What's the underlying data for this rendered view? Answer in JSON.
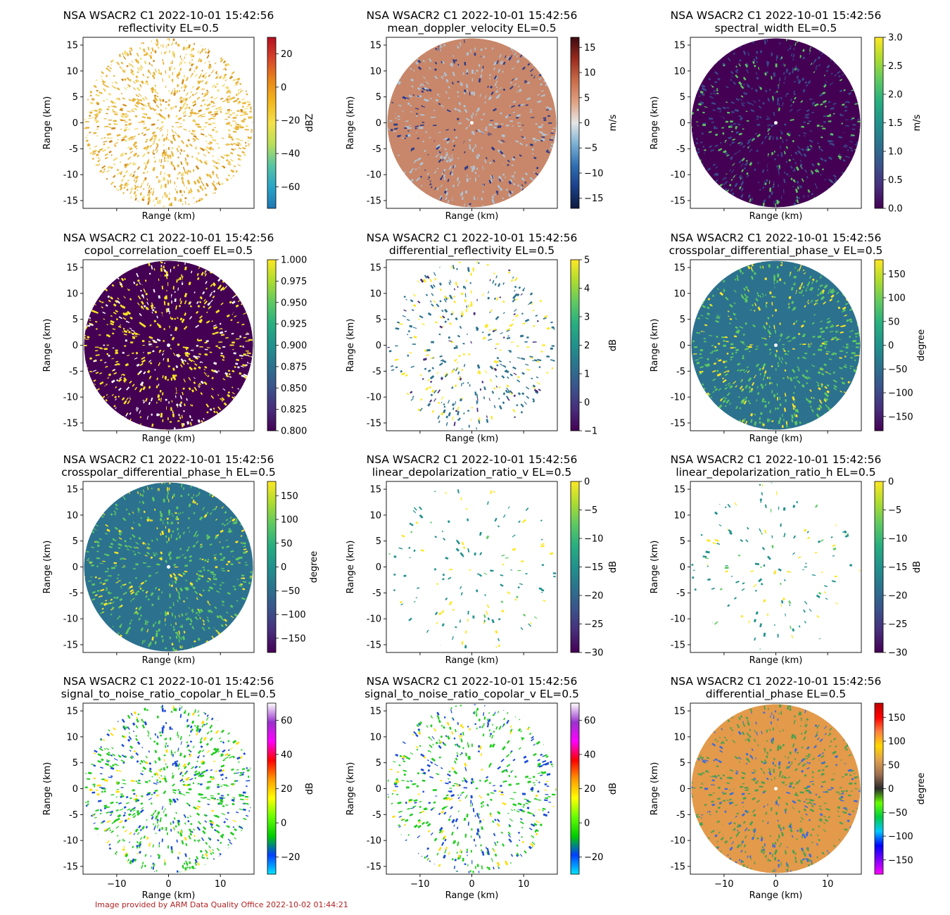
{
  "figure": {
    "footer": "Image provided by ARM Data Quality Office 2022-10-02 01:44:21",
    "footer_color": "#b22222"
  },
  "chart_data": [
    {
      "type": "heatmap",
      "title": "NSA WSACR2 C1 2022-10-01 15:42:56",
      "subtitle": "reflectivity  EL=0.5",
      "xlabel": "Range (km)",
      "ylabel": "Range (km)",
      "xlim": [
        -16.5,
        16.5
      ],
      "ylim": [
        -16.5,
        16.5
      ],
      "xticks": [
        -10,
        0,
        10
      ],
      "yticks": [
        15,
        10,
        5,
        0,
        -5,
        -10,
        -15
      ],
      "show_xticklabels": false,
      "show_ylabels": true,
      "colorbar": {
        "label": "dBZ",
        "min": -73,
        "max": 30,
        "ticks": [
          20,
          0,
          -20,
          -40,
          -60
        ],
        "colormap": [
          "#1f77b4",
          "#2aa5c7",
          "#57c4a4",
          "#b9df5a",
          "#f5e04a",
          "#f3b61c",
          "#e8861a",
          "#d6452b",
          "#b40f20"
        ]
      },
      "field": {
        "fill": "#e8b43c",
        "fill2": "#f4dc7a",
        "pattern": "sparse",
        "accent": "#d08a1e",
        "density": 0.8
      }
    },
    {
      "type": "heatmap",
      "title": "NSA WSACR2 C1 2022-10-01 15:42:56",
      "subtitle": "mean_doppler_velocity  EL=0.5",
      "xlabel": "Range (km)",
      "ylabel": "Range (km)",
      "xlim": [
        -16.5,
        16.5
      ],
      "ylim": [
        -16.5,
        16.5
      ],
      "xticks": [
        -10,
        0,
        10
      ],
      "yticks": [
        15,
        10,
        5,
        0,
        -5,
        -10,
        -15
      ],
      "show_xticklabels": false,
      "show_ylabels": true,
      "colorbar": {
        "label": "m/s",
        "min": -17,
        "max": 17,
        "ticks": [
          15,
          10,
          5,
          0,
          -5,
          -10,
          -15
        ],
        "colormap": [
          "#0e1a3c",
          "#1b3f8a",
          "#2f6fb1",
          "#7ab0d4",
          "#e6e6e6",
          "#e0a080",
          "#c86a48",
          "#9a2a1e",
          "#3c0a10"
        ]
      },
      "field": {
        "fill": "#c8876a",
        "fill2": "#b0c4d4",
        "pattern": "noisy",
        "accent": "#2a3a8a",
        "density": 0.95
      }
    },
    {
      "type": "heatmap",
      "title": "NSA WSACR2 C1 2022-10-01 15:42:56",
      "subtitle": "spectral_width  EL=0.5",
      "xlabel": "Range (km)",
      "ylabel": "Range (km)",
      "xlim": [
        -16.5,
        16.5
      ],
      "ylim": [
        -16.5,
        16.5
      ],
      "xticks": [
        -10,
        0,
        10
      ],
      "yticks": [
        15,
        10,
        5,
        0,
        -5,
        -10,
        -15
      ],
      "show_xticklabels": false,
      "show_ylabels": true,
      "colorbar": {
        "label": "m/s",
        "min": 0,
        "max": 3,
        "ticks": [
          3.0,
          2.5,
          2.0,
          1.5,
          1.0,
          0.5,
          0.0
        ],
        "colormap": [
          "#440154",
          "#472d7b",
          "#3b528b",
          "#2c728e",
          "#21918c",
          "#28ae80",
          "#5ec962",
          "#addc30",
          "#fde725"
        ]
      },
      "field": {
        "fill": "#440154",
        "fill2": "#3b4a8a",
        "pattern": "solid",
        "accent": "#5ec962",
        "density": 1.0
      }
    },
    {
      "type": "heatmap",
      "title": "NSA WSACR2 C1 2022-10-01 15:42:56",
      "subtitle": "copol_correlation_coeff  EL=0.5",
      "xlabel": "Range (km)",
      "ylabel": "Range (km)",
      "xlim": [
        -16.5,
        16.5
      ],
      "ylim": [
        -16.5,
        16.5
      ],
      "xticks": [
        -10,
        0,
        10
      ],
      "yticks": [
        15,
        10,
        5,
        0,
        -5,
        -10,
        -15
      ],
      "show_xticklabels": false,
      "show_ylabels": true,
      "colorbar": {
        "label": "",
        "min": 0.8,
        "max": 1.0,
        "ticks": [
          1.0,
          0.975,
          0.95,
          0.925,
          0.9,
          0.875,
          0.85,
          0.825,
          0.8
        ],
        "colormap": [
          "#440154",
          "#472d7b",
          "#3b528b",
          "#2c728e",
          "#21918c",
          "#28ae80",
          "#5ec962",
          "#addc30",
          "#fde725"
        ]
      },
      "field": {
        "fill": "#440154",
        "fill2": "#fde725",
        "pattern": "solid",
        "accent": "#ffffff",
        "density": 1.0
      }
    },
    {
      "type": "heatmap",
      "title": "NSA WSACR2 C1 2022-10-01 15:42:56",
      "subtitle": "differential_reflectivity  EL=0.5",
      "xlabel": "Range (km)",
      "ylabel": "Range (km)",
      "xlim": [
        -16.5,
        16.5
      ],
      "ylim": [
        -16.5,
        16.5
      ],
      "xticks": [
        -10,
        0,
        10
      ],
      "yticks": [
        15,
        10,
        5,
        0,
        -5,
        -10,
        -15
      ],
      "show_xticklabels": false,
      "show_ylabels": true,
      "colorbar": {
        "label": "dB",
        "min": -1,
        "max": 5,
        "ticks": [
          5,
          4,
          3,
          2,
          1,
          0,
          -1
        ],
        "colormap": [
          "#440154",
          "#472d7b",
          "#3b528b",
          "#2c728e",
          "#21918c",
          "#28ae80",
          "#5ec962",
          "#addc30",
          "#fde725"
        ]
      },
      "field": {
        "fill": "#2c728e",
        "fill2": "#fde725",
        "pattern": "sparse",
        "accent": "#472d7b",
        "density": 0.3
      }
    },
    {
      "type": "heatmap",
      "title": "NSA WSACR2 C1 2022-10-01 15:42:56",
      "subtitle": "crosspolar_differential_phase_v  EL=0.5",
      "xlabel": "Range (km)",
      "ylabel": "Range (km)",
      "xlim": [
        -16.5,
        16.5
      ],
      "ylim": [
        -16.5,
        16.5
      ],
      "xticks": [
        -10,
        0,
        10
      ],
      "yticks": [
        15,
        10,
        5,
        0,
        -5,
        -10,
        -15
      ],
      "show_xticklabels": false,
      "show_ylabels": true,
      "colorbar": {
        "label": "degree",
        "min": -180,
        "max": 180,
        "ticks": [
          150,
          100,
          50,
          0,
          -50,
          -100,
          -150
        ],
        "colormap": [
          "#440154",
          "#472d7b",
          "#3b528b",
          "#2c728e",
          "#21918c",
          "#28ae80",
          "#5ec962",
          "#addc30",
          "#fde725"
        ]
      },
      "field": {
        "fill": "#2c728e",
        "fill2": "#5ec962",
        "pattern": "noisy",
        "accent": "#fde725",
        "density": 1.0
      }
    },
    {
      "type": "heatmap",
      "title": "NSA WSACR2 C1 2022-10-01 15:42:56",
      "subtitle": "crosspolar_differential_phase_h  EL=0.5",
      "xlabel": "Range (km)",
      "ylabel": "Range (km)",
      "xlim": [
        -16.5,
        16.5
      ],
      "ylim": [
        -16.5,
        16.5
      ],
      "xticks": [
        -10,
        0,
        10
      ],
      "yticks": [
        15,
        10,
        5,
        0,
        -5,
        -10,
        -15
      ],
      "show_xticklabels": false,
      "show_ylabels": true,
      "colorbar": {
        "label": "degree",
        "min": -180,
        "max": 180,
        "ticks": [
          150,
          100,
          50,
          0,
          -50,
          -100,
          -150
        ],
        "colormap": [
          "#440154",
          "#472d7b",
          "#3b528b",
          "#2c728e",
          "#21918c",
          "#28ae80",
          "#5ec962",
          "#addc30",
          "#fde725"
        ]
      },
      "field": {
        "fill": "#2c728e",
        "fill2": "#5ec962",
        "pattern": "noisy",
        "accent": "#fde725",
        "density": 1.0
      }
    },
    {
      "type": "heatmap",
      "title": "NSA WSACR2 C1 2022-10-01 15:42:56",
      "subtitle": "linear_depolarization_ratio_v  EL=0.5",
      "xlabel": "Range (km)",
      "ylabel": "Range (km)",
      "xlim": [
        -16.5,
        16.5
      ],
      "ylim": [
        -16.5,
        16.5
      ],
      "xticks": [
        -10,
        0,
        10
      ],
      "yticks": [
        15,
        10,
        5,
        0,
        -5,
        -10,
        -15
      ],
      "show_xticklabels": false,
      "show_ylabels": true,
      "colorbar": {
        "label": "dB",
        "min": -30,
        "max": 0,
        "ticks": [
          0,
          -5,
          -10,
          -15,
          -20,
          -25,
          -30
        ],
        "colormap": [
          "#440154",
          "#472d7b",
          "#3b528b",
          "#2c728e",
          "#21918c",
          "#28ae80",
          "#5ec962",
          "#addc30",
          "#fde725"
        ]
      },
      "field": {
        "fill": "#21918c",
        "fill2": "#fde725",
        "pattern": "sparse",
        "accent": "#5ec962",
        "density": 0.1
      }
    },
    {
      "type": "heatmap",
      "title": "NSA WSACR2 C1 2022-10-01 15:42:56",
      "subtitle": "linear_depolarization_ratio_h  EL=0.5",
      "xlabel": "Range (km)",
      "ylabel": "Range (km)",
      "xlim": [
        -16.5,
        16.5
      ],
      "ylim": [
        -16.5,
        16.5
      ],
      "xticks": [
        -10,
        0,
        10
      ],
      "yticks": [
        15,
        10,
        5,
        0,
        -5,
        -10,
        -15
      ],
      "show_xticklabels": false,
      "show_ylabels": true,
      "colorbar": {
        "label": "dB",
        "min": -30,
        "max": 0,
        "ticks": [
          0,
          -5,
          -10,
          -15,
          -20,
          -25,
          -30
        ],
        "colormap": [
          "#440154",
          "#472d7b",
          "#3b528b",
          "#2c728e",
          "#21918c",
          "#28ae80",
          "#5ec962",
          "#addc30",
          "#fde725"
        ]
      },
      "field": {
        "fill": "#21918c",
        "fill2": "#fde725",
        "pattern": "sparse",
        "accent": "#5ec962",
        "density": 0.1
      }
    },
    {
      "type": "heatmap",
      "title": "NSA WSACR2 C1 2022-10-01 15:42:56",
      "subtitle": "signal_to_noise_ratio_copolar_h  EL=0.5",
      "xlabel": "Range (km)",
      "ylabel": "Range (km)",
      "xlim": [
        -16.5,
        16.5
      ],
      "ylim": [
        -16.5,
        16.5
      ],
      "xticks": [
        -10,
        0,
        10
      ],
      "yticks": [
        15,
        10,
        5,
        0,
        -5,
        -10,
        -15
      ],
      "show_xticklabels": true,
      "show_ylabels": true,
      "colorbar": {
        "label": "dB",
        "min": -30,
        "max": 70,
        "ticks": [
          60,
          40,
          20,
          0,
          -20
        ],
        "colormap": [
          "#00e5ff",
          "#0040ff",
          "#00cc00",
          "#66ff00",
          "#ffff00",
          "#ff9900",
          "#ff0000",
          "#ff00ff",
          "#9933cc",
          "#ffffff"
        ]
      },
      "field": {
        "fill": "#22cc22",
        "fill2": "#1a4bd6",
        "pattern": "sparse",
        "accent": "#ffdd00",
        "density": 0.55
      }
    },
    {
      "type": "heatmap",
      "title": "NSA WSACR2 C1 2022-10-01 15:42:56",
      "subtitle": "signal_to_noise_ratio_copolar_v  EL=0.5",
      "xlabel": "Range (km)",
      "ylabel": "Range (km)",
      "xlim": [
        -16.5,
        16.5
      ],
      "ylim": [
        -16.5,
        16.5
      ],
      "xticks": [
        -10,
        0,
        10
      ],
      "yticks": [
        15,
        10,
        5,
        0,
        -5,
        -10,
        -15
      ],
      "show_xticklabels": true,
      "show_ylabels": true,
      "colorbar": {
        "label": "dB",
        "min": -30,
        "max": 70,
        "ticks": [
          60,
          40,
          20,
          0,
          -20
        ],
        "colormap": [
          "#00e5ff",
          "#0040ff",
          "#00cc00",
          "#66ff00",
          "#ffff00",
          "#ff9900",
          "#ff0000",
          "#ff00ff",
          "#9933cc",
          "#ffffff"
        ]
      },
      "field": {
        "fill": "#22cc22",
        "fill2": "#1a4bd6",
        "pattern": "sparse",
        "accent": "#ffdd00",
        "density": 0.4
      }
    },
    {
      "type": "heatmap",
      "title": "NSA WSACR2 C1 2022-10-01 15:42:56",
      "subtitle": "differential_phase  EL=0.5",
      "xlabel": "Range (km)",
      "ylabel": "Range (km)",
      "xlim": [
        -16.5,
        16.5
      ],
      "ylim": [
        -16.5,
        16.5
      ],
      "xticks": [
        -10,
        0,
        10
      ],
      "yticks": [
        15,
        10,
        5,
        0,
        -5,
        -10,
        -15
      ],
      "show_xticklabels": true,
      "show_ylabels": true,
      "colorbar": {
        "label": "degree",
        "min": -180,
        "max": 180,
        "ticks": [
          150,
          100,
          50,
          0,
          -50,
          -100,
          -150
        ],
        "colormap": [
          "#ff00ff",
          "#8000ff",
          "#0000ff",
          "#00c8ff",
          "#00cc44",
          "#66ff00",
          "#2a2a2a",
          "#a07050",
          "#e0a050",
          "#ffd700",
          "#ff8040",
          "#ff0000",
          "#c00000"
        ]
      },
      "field": {
        "fill": "#e39a4a",
        "fill2": "#4aa050",
        "pattern": "noisy",
        "accent": "#3a6ae0",
        "density": 1.0
      }
    }
  ]
}
